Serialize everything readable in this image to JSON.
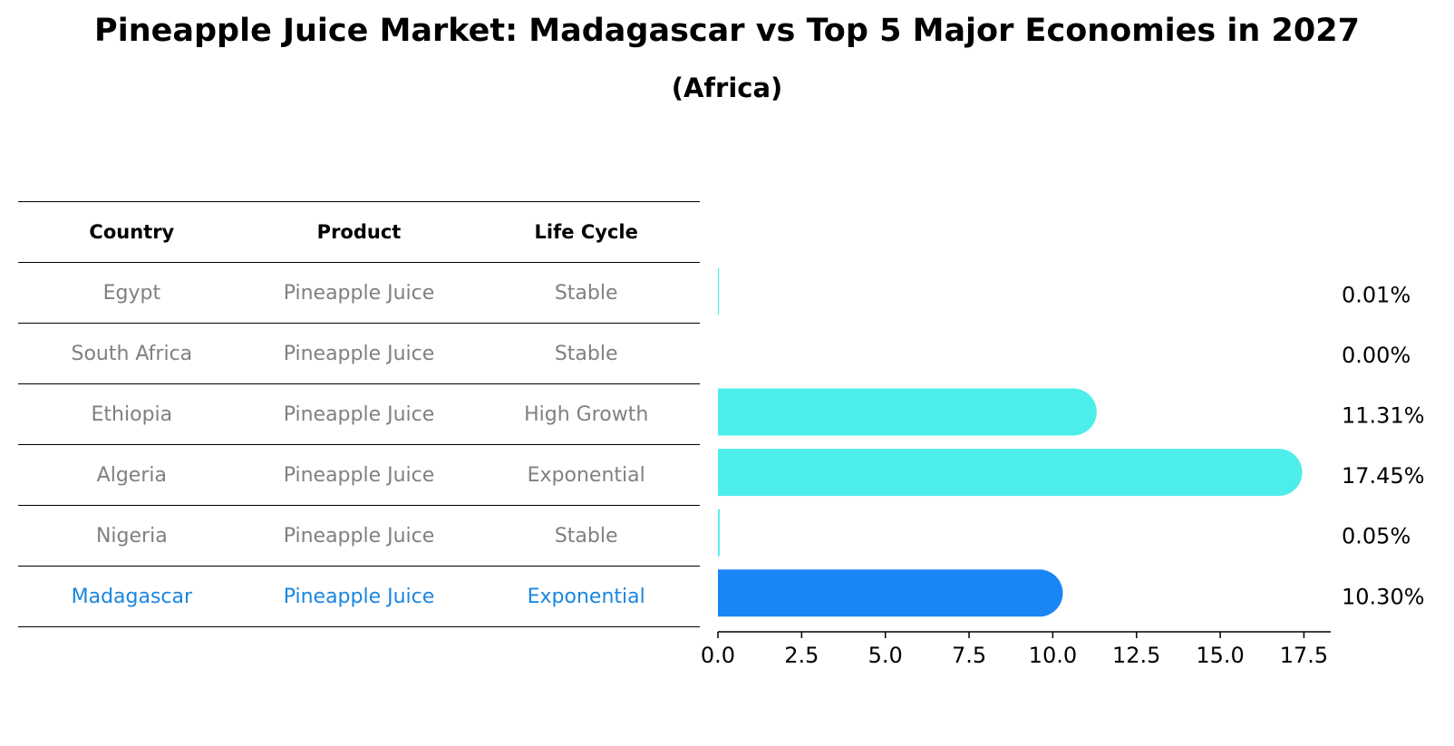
{
  "title": "Pineapple Juice Market: Madagascar vs Top 5 Major Economies in 2027",
  "subtitle": "(Africa)",
  "table": {
    "headers": [
      "Country",
      "Product",
      "Life Cycle"
    ],
    "rows": [
      {
        "country": "Egypt",
        "product": "Pineapple Juice",
        "life_cycle": "Stable"
      },
      {
        "country": "South Africa",
        "product": "Pineapple Juice",
        "life_cycle": "Stable"
      },
      {
        "country": "Ethiopia",
        "product": "Pineapple Juice",
        "life_cycle": "High Growth"
      },
      {
        "country": "Algeria",
        "product": "Pineapple Juice",
        "life_cycle": "Exponential"
      },
      {
        "country": "Nigeria",
        "product": "Pineapple Juice",
        "life_cycle": "Stable"
      },
      {
        "country": "Madagascar",
        "product": "Pineapple Juice",
        "life_cycle": "Exponential"
      }
    ]
  },
  "colors": {
    "bar": "#4deeea",
    "highlight": "#1a86f5",
    "muted_text": "#808080",
    "highlight_text": "#1a86e0"
  },
  "chart_data": {
    "type": "bar",
    "orientation": "horizontal",
    "categories": [
      "Egypt",
      "South Africa",
      "Ethiopia",
      "Algeria",
      "Nigeria",
      "Madagascar"
    ],
    "values": [
      0.01,
      0.0,
      11.31,
      17.45,
      0.05,
      10.3
    ],
    "value_labels": [
      "0.01%",
      "0.00%",
      "11.31%",
      "17.45%",
      "0.05%",
      "10.30%"
    ],
    "highlight": "Madagascar",
    "xlim": [
      0,
      18.3
    ],
    "xticks": [
      0.0,
      2.5,
      5.0,
      7.5,
      10.0,
      12.5,
      15.0,
      17.5
    ],
    "xtick_labels": [
      "0.0",
      "2.5",
      "5.0",
      "7.5",
      "10.0",
      "12.5",
      "15.0",
      "17.5"
    ],
    "xlabel": "",
    "ylabel": "",
    "grid": false
  }
}
